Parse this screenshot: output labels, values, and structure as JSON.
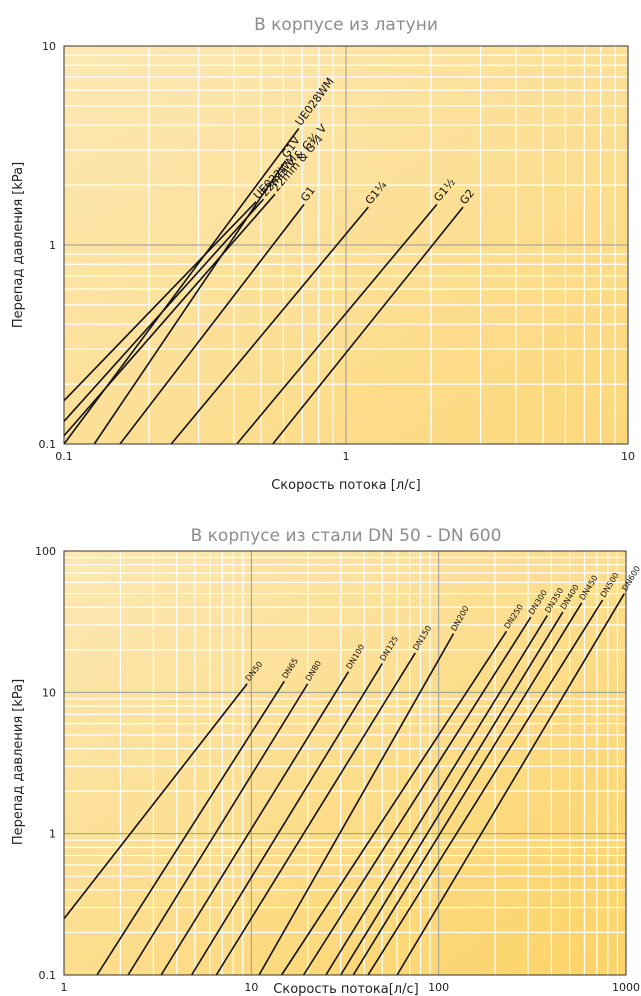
{
  "chart_data": [
    {
      "type": "line",
      "title": "В корпусе из латуни",
      "xlabel": "Скорость потока [л/с]",
      "ylabel": "Перепад давления [kPa]",
      "xscale": "log",
      "yscale": "log",
      "xlim": [
        0.1,
        10
      ],
      "ylim": [
        0.1,
        10
      ],
      "xticks": [
        "0.1",
        "1",
        "10"
      ],
      "yticks": [
        "0.1",
        "1",
        "10"
      ],
      "grid": true,
      "series": [
        {
          "name": "UE022WM",
          "x": [
            0.1,
            0.48
          ],
          "y": [
            0.165,
            1.65
          ]
        },
        {
          "name": "22mm V & G¾ V",
          "x": [
            0.1,
            0.51
          ],
          "y": [
            0.13,
            1.7
          ]
        },
        {
          "name": "22mm & G¾",
          "x": [
            0.1,
            0.56
          ],
          "y": [
            0.11,
            1.8
          ]
        },
        {
          "name": "UE028WM",
          "x": [
            0.1,
            0.68
          ],
          "y": [
            0.1,
            3.85
          ]
        },
        {
          "name": "G1V",
          "x": [
            0.128,
            0.61
          ],
          "y": [
            0.1,
            2.65
          ]
        },
        {
          "name": "G1",
          "x": [
            0.158,
            0.71
          ],
          "y": [
            0.1,
            1.6
          ]
        },
        {
          "name": "G1¼",
          "x": [
            0.24,
            1.2
          ],
          "y": [
            0.1,
            1.55
          ]
        },
        {
          "name": "G1½",
          "x": [
            0.41,
            2.1
          ],
          "y": [
            0.1,
            1.6
          ]
        },
        {
          "name": "G2",
          "x": [
            0.55,
            2.6
          ],
          "y": [
            0.1,
            1.55
          ]
        }
      ]
    },
    {
      "type": "line",
      "title": "В корпусе из стали DN 50 - DN 600",
      "xlabel": "Скорость потока[л/с]",
      "ylabel": "Перепад давления [kPa]",
      "xscale": "log",
      "yscale": "log",
      "xlim": [
        1,
        1000
      ],
      "ylim": [
        0.1,
        100
      ],
      "xticks": [
        "1",
        "10",
        "100",
        "1000"
      ],
      "yticks": [
        "0.1",
        "1",
        "10",
        "100"
      ],
      "grid": true,
      "series": [
        {
          "name": "DN50",
          "x": [
            1,
            9.5
          ],
          "y": [
            0.25,
            11.5
          ]
        },
        {
          "name": "DN65",
          "x": [
            1.5,
            15
          ],
          "y": [
            0.1,
            12
          ]
        },
        {
          "name": "DN80",
          "x": [
            2.2,
            20
          ],
          "y": [
            0.1,
            11.5
          ]
        },
        {
          "name": "DN100",
          "x": [
            3.3,
            33
          ],
          "y": [
            0.1,
            14
          ]
        },
        {
          "name": "DN125",
          "x": [
            4.8,
            50
          ],
          "y": [
            0.1,
            16
          ]
        },
        {
          "name": "DN150",
          "x": [
            6.5,
            75
          ],
          "y": [
            0.1,
            19
          ]
        },
        {
          "name": "DN200",
          "x": [
            11,
            120
          ],
          "y": [
            0.1,
            26
          ]
        },
        {
          "name": "DN250",
          "x": [
            14.5,
            230
          ],
          "y": [
            0.1,
            27
          ]
        },
        {
          "name": "DN300",
          "x": [
            19,
            310
          ],
          "y": [
            0.1,
            34
          ]
        },
        {
          "name": "DN350",
          "x": [
            25,
            380
          ],
          "y": [
            0.1,
            35
          ]
        },
        {
          "name": "DN400",
          "x": [
            30,
            460
          ],
          "y": [
            0.1,
            37
          ]
        },
        {
          "name": "DN450",
          "x": [
            35,
            580
          ],
          "y": [
            0.1,
            43
          ]
        },
        {
          "name": "DN500",
          "x": [
            42,
            750
          ],
          "y": [
            0.1,
            45
          ]
        },
        {
          "name": "DN600",
          "x": [
            60,
            980
          ],
          "y": [
            0.1,
            50
          ]
        }
      ]
    }
  ]
}
